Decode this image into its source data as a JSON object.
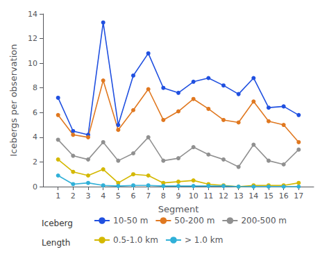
{
  "chart_data": {
    "type": "line",
    "xlabel": "Segment",
    "ylabel": "Icebergs per observation",
    "x": [
      1,
      2,
      3,
      4,
      5,
      6,
      7,
      8,
      9,
      10,
      11,
      12,
      13,
      14,
      15,
      16,
      17
    ],
    "series": [
      {
        "name": "10-50 m",
        "color": "#2050e0",
        "values": [
          7.2,
          4.5,
          4.2,
          13.3,
          5.0,
          9.0,
          10.8,
          8.0,
          7.6,
          8.5,
          8.8,
          8.2,
          7.5,
          8.8,
          6.4,
          6.5,
          5.8
        ]
      },
      {
        "name": "50-200 m",
        "color": "#e07820",
        "values": [
          5.8,
          4.2,
          4.0,
          8.6,
          4.6,
          6.2,
          7.9,
          5.4,
          6.1,
          7.1,
          6.3,
          5.4,
          5.2,
          6.9,
          5.3,
          5.0,
          3.6
        ]
      },
      {
        "name": "200-500 m",
        "color": "#909090",
        "values": [
          3.8,
          2.5,
          2.2,
          3.6,
          2.1,
          2.7,
          4.0,
          2.1,
          2.3,
          3.2,
          2.6,
          2.2,
          1.6,
          3.4,
          2.1,
          1.8,
          3.0
        ]
      },
      {
        "name": "0.5-1.0 km",
        "color": "#d4b800",
        "values": [
          2.2,
          1.2,
          0.9,
          1.4,
          0.3,
          1.0,
          0.9,
          0.3,
          0.4,
          0.5,
          0.2,
          0.1,
          0.0,
          0.1,
          0.1,
          0.1,
          0.3
        ]
      },
      {
        "name": "> 1.0 km",
        "color": "#30b0d8",
        "values": [
          0.9,
          0.2,
          0.3,
          0.1,
          0.05,
          0.1,
          0.1,
          0.05,
          0.05,
          0.05,
          0.05,
          0.05,
          0.0,
          0.0,
          0.0,
          0.0,
          0.0
        ]
      }
    ],
    "xlim": [
      0,
      18
    ],
    "xticks": [
      1,
      2,
      3,
      4,
      5,
      6,
      7,
      8,
      9,
      10,
      11,
      12,
      13,
      14,
      15,
      16,
      17
    ],
    "ylim": [
      0,
      14
    ],
    "yticks": [
      0,
      2,
      4,
      6,
      8,
      10,
      12,
      14
    ],
    "grid": false,
    "legend": "bottom",
    "marker": "circle",
    "annotations": [
      "Iceberg",
      "Length"
    ]
  }
}
